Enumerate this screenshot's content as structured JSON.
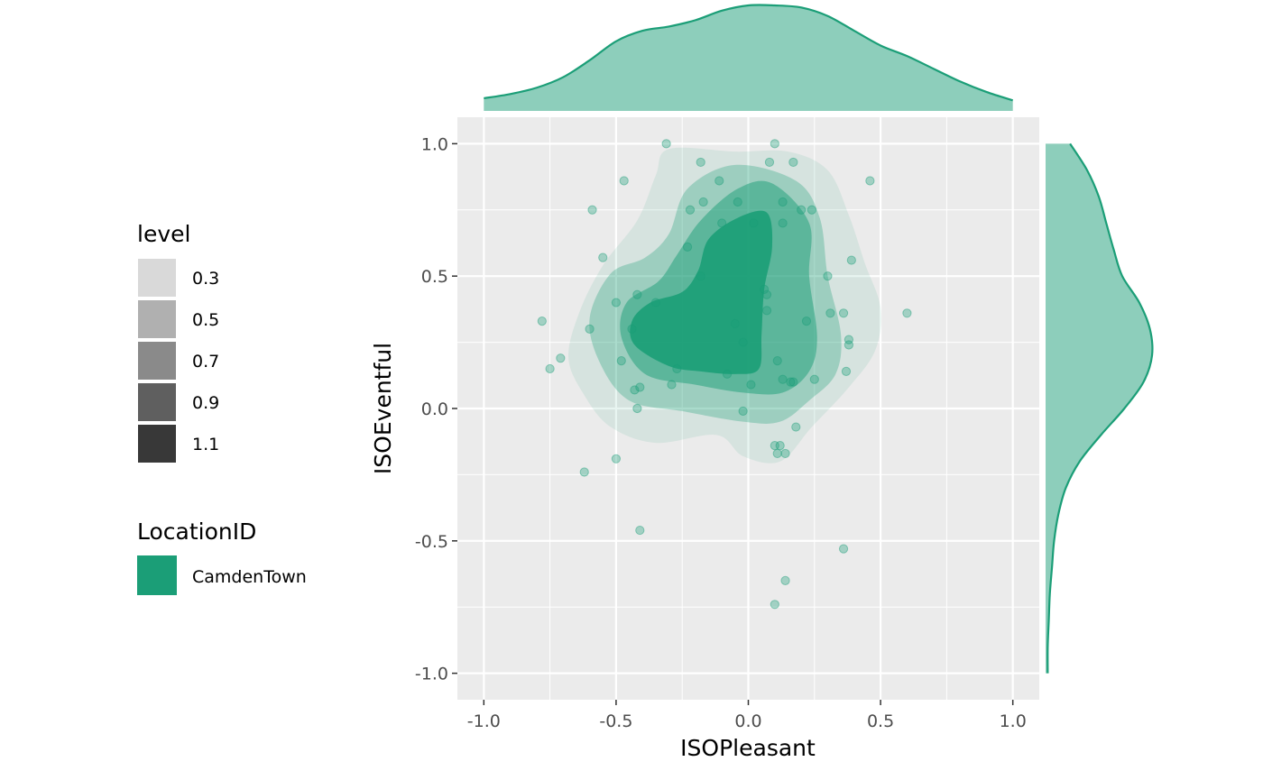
{
  "chart_data": {
    "type": "scatter",
    "xlabel": "ISOPleasant",
    "ylabel": "ISOEventful",
    "xlim": [
      -1.1,
      1.1
    ],
    "ylim": [
      -1.1,
      1.1
    ],
    "x_ticks": [
      -1.0,
      -0.5,
      0.0,
      0.5,
      1.0
    ],
    "y_ticks": [
      -1.0,
      -0.5,
      0.0,
      0.5,
      1.0
    ],
    "x_tick_labels": [
      "-1.0",
      "-0.5",
      "0.0",
      "0.5",
      "1.0"
    ],
    "y_tick_labels": [
      "-1.0",
      "-0.5",
      "0.0",
      "0.5",
      "1.0"
    ],
    "grid": true,
    "panel_background": "#ebebeb",
    "series_color": "#1b9e77",
    "legend_placement": "left",
    "legend_level": {
      "title": "level",
      "entries": [
        {
          "label": "0.3",
          "color": "#d9d9d9"
        },
        {
          "label": "0.5",
          "color": "#b0b0b0"
        },
        {
          "label": "0.7",
          "color": "#8a8a8a"
        },
        {
          "label": "0.9",
          "color": "#5f5f5f"
        },
        {
          "label": "1.1",
          "color": "#383838"
        }
      ]
    },
    "legend_location": {
      "title": "LocationID",
      "entries": [
        {
          "label": "CamdenTown",
          "color": "#1b9e77"
        }
      ]
    },
    "density_levels": [
      {
        "level": 0.3,
        "opacity": 0.1,
        "polygon": [
          [
            -0.3,
            0.98
          ],
          [
            -0.05,
            0.97
          ],
          [
            0.15,
            0.97
          ],
          [
            0.3,
            0.9
          ],
          [
            0.38,
            0.73
          ],
          [
            0.44,
            0.55
          ],
          [
            0.5,
            0.38
          ],
          [
            0.48,
            0.22
          ],
          [
            0.38,
            0.08
          ],
          [
            0.24,
            -0.07
          ],
          [
            0.12,
            -0.2
          ],
          [
            -0.02,
            -0.18
          ],
          [
            -0.12,
            -0.1
          ],
          [
            -0.35,
            -0.13
          ],
          [
            -0.52,
            -0.07
          ],
          [
            -0.62,
            0.05
          ],
          [
            -0.68,
            0.19
          ],
          [
            -0.64,
            0.36
          ],
          [
            -0.55,
            0.54
          ],
          [
            -0.42,
            0.71
          ],
          [
            -0.35,
            0.88
          ]
        ]
      },
      {
        "level": 0.5,
        "opacity": 0.3,
        "polygon": [
          [
            -0.23,
            0.83
          ],
          [
            -0.05,
            0.92
          ],
          [
            0.18,
            0.86
          ],
          [
            0.27,
            0.72
          ],
          [
            0.3,
            0.5
          ],
          [
            0.35,
            0.28
          ],
          [
            0.33,
            0.13
          ],
          [
            0.23,
            0.03
          ],
          [
            0.12,
            -0.05
          ],
          [
            -0.02,
            -0.05
          ],
          [
            -0.25,
            -0.01
          ],
          [
            -0.45,
            0.03
          ],
          [
            -0.56,
            0.17
          ],
          [
            -0.6,
            0.34
          ],
          [
            -0.52,
            0.51
          ],
          [
            -0.39,
            0.57
          ],
          [
            -0.3,
            0.66
          ]
        ]
      },
      {
        "level": 0.7,
        "opacity": 0.5,
        "polygon": [
          [
            -0.18,
            0.71
          ],
          [
            -0.04,
            0.83
          ],
          [
            0.09,
            0.85
          ],
          [
            0.23,
            0.7
          ],
          [
            0.23,
            0.5
          ],
          [
            0.26,
            0.27
          ],
          [
            0.23,
            0.14
          ],
          [
            0.13,
            0.06
          ],
          [
            -0.02,
            0.06
          ],
          [
            -0.2,
            0.09
          ],
          [
            -0.39,
            0.13
          ],
          [
            -0.48,
            0.27
          ],
          [
            -0.46,
            0.4
          ],
          [
            -0.34,
            0.48
          ],
          [
            -0.27,
            0.58
          ]
        ]
      },
      {
        "level": 1.1,
        "opacity": 0.9,
        "polygon": [
          [
            -0.15,
            0.64
          ],
          [
            -0.04,
            0.72
          ],
          [
            0.07,
            0.74
          ],
          [
            0.09,
            0.61
          ],
          [
            0.06,
            0.45
          ],
          [
            0.05,
            0.28
          ],
          [
            0.04,
            0.15
          ],
          [
            -0.05,
            0.13
          ],
          [
            -0.18,
            0.14
          ],
          [
            -0.3,
            0.16
          ],
          [
            -0.43,
            0.24
          ],
          [
            -0.44,
            0.33
          ],
          [
            -0.37,
            0.4
          ],
          [
            -0.25,
            0.44
          ],
          [
            -0.19,
            0.52
          ]
        ]
      }
    ],
    "points": {
      "x": [
        -0.31,
        0.1,
        -0.18,
        0.17,
        0.46,
        -0.47,
        -0.59,
        -0.22,
        -0.17,
        -0.11,
        -0.04,
        0.08,
        0.13,
        0.2,
        0.24,
        -0.55,
        0.3,
        0.39,
        0.36,
        0.31,
        0.6,
        0.22,
        0.38,
        0.38,
        0.37,
        -0.78,
        -0.71,
        -0.6,
        -0.75,
        -0.5,
        -0.42,
        -0.44,
        -0.48,
        -0.41,
        -0.43,
        -0.42,
        -0.27,
        -0.23,
        -0.29,
        -0.02,
        0.01,
        0.13,
        0.16,
        0.18,
        0.12,
        0.14,
        0.06,
        0.07,
        0.11,
        0.17,
        -0.08,
        -0.02,
        0.1,
        0.11,
        0.25,
        -0.62,
        -0.41,
        0.36,
        0.14,
        0.1,
        -0.5,
        0.02,
        -0.1,
        -0.05,
        -0.18,
        -0.35,
        0.13,
        0.07
      ],
      "y": [
        1.0,
        1.0,
        0.93,
        0.93,
        0.86,
        0.86,
        0.75,
        0.75,
        0.78,
        0.86,
        0.78,
        0.93,
        0.78,
        0.75,
        0.75,
        0.57,
        0.5,
        0.56,
        0.36,
        0.36,
        0.36,
        0.33,
        0.26,
        0.24,
        0.14,
        0.33,
        0.19,
        0.3,
        0.15,
        0.4,
        0.43,
        0.3,
        0.18,
        0.08,
        0.07,
        0.0,
        0.15,
        0.61,
        0.09,
        -0.01,
        0.09,
        0.11,
        0.1,
        -0.07,
        -0.14,
        -0.17,
        0.45,
        0.43,
        0.18,
        0.1,
        0.13,
        0.25,
        -0.14,
        -0.17,
        0.11,
        -0.24,
        -0.46,
        -0.53,
        -0.65,
        -0.74,
        -0.19,
        0.7,
        0.7,
        0.32,
        0.5,
        0.4,
        0.7,
        0.37
      ]
    },
    "marginal_x": {
      "x": [
        -1.0,
        -0.9,
        -0.8,
        -0.7,
        -0.6,
        -0.5,
        -0.4,
        -0.3,
        -0.2,
        -0.1,
        0.0,
        0.1,
        0.2,
        0.3,
        0.4,
        0.5,
        0.6,
        0.7,
        0.8,
        0.9,
        1.0
      ],
      "density": [
        0.12,
        0.16,
        0.22,
        0.32,
        0.48,
        0.66,
        0.76,
        0.8,
        0.86,
        0.95,
        1.0,
        1.0,
        0.98,
        0.9,
        0.76,
        0.62,
        0.52,
        0.4,
        0.28,
        0.18,
        0.1
      ]
    },
    "marginal_y": {
      "y": [
        1.0,
        0.9,
        0.8,
        0.7,
        0.6,
        0.5,
        0.4,
        0.3,
        0.2,
        0.1,
        0.0,
        -0.1,
        -0.2,
        -0.3,
        -0.4,
        -0.5,
        -0.6,
        -0.7,
        -0.8,
        -0.9,
        -1.0
      ],
      "density": [
        0.23,
        0.39,
        0.5,
        0.57,
        0.64,
        0.72,
        0.88,
        0.98,
        1.0,
        0.92,
        0.74,
        0.52,
        0.32,
        0.19,
        0.12,
        0.08,
        0.06,
        0.04,
        0.03,
        0.02,
        0.02
      ]
    }
  }
}
